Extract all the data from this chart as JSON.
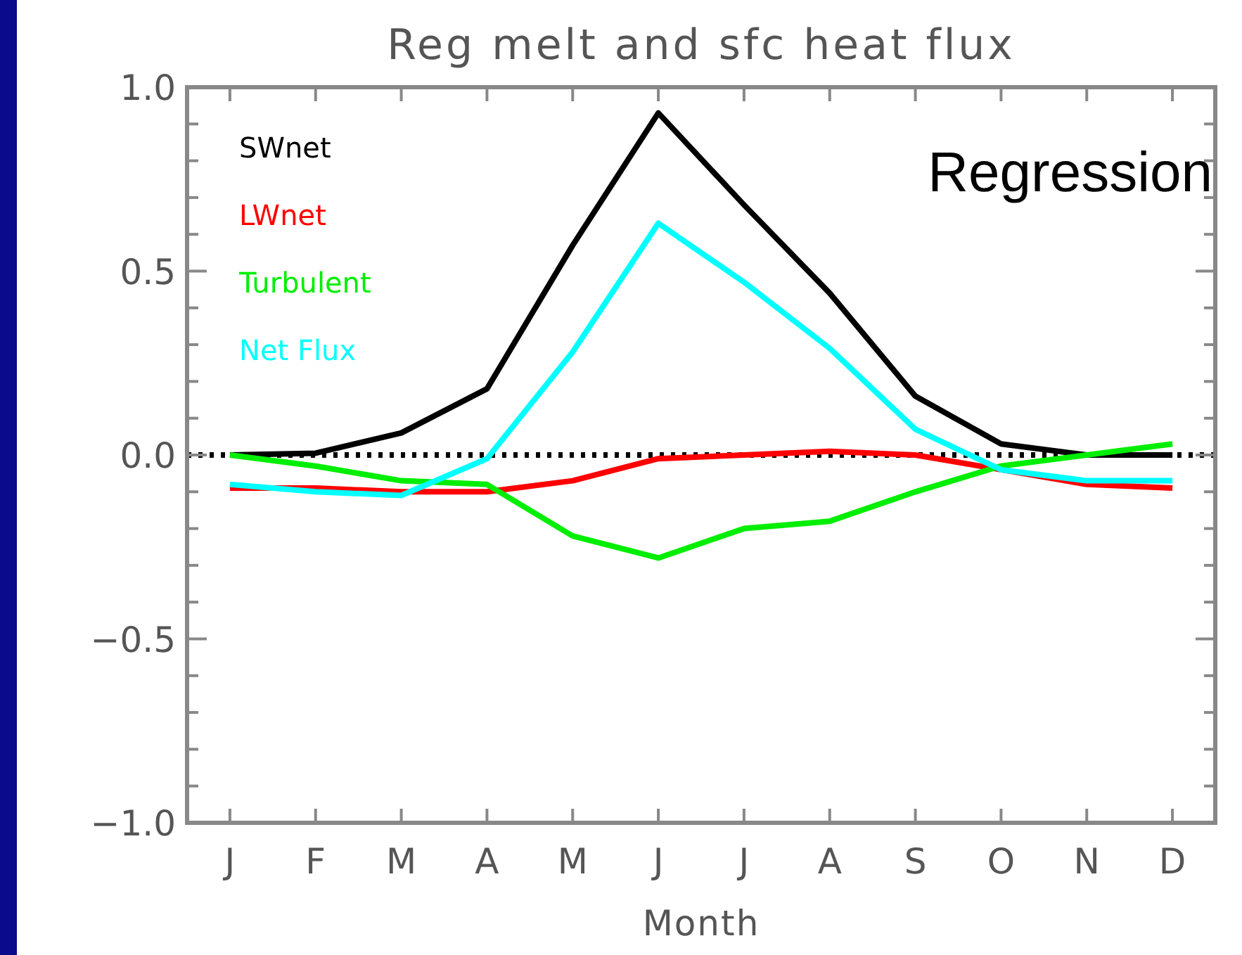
{
  "chart_data": {
    "type": "line",
    "title": "Reg melt and sfc heat flux",
    "xlabel": "Month",
    "categories": [
      "J",
      "F",
      "M",
      "A",
      "M",
      "J",
      "J",
      "A",
      "S",
      "O",
      "N",
      "D"
    ],
    "series": [
      {
        "name": "SWnet",
        "color": "#000000",
        "values": [
          0,
          0.005,
          0.06,
          0.18,
          0.57,
          0.93,
          0.68,
          0.44,
          0.16,
          0.03,
          0,
          0
        ]
      },
      {
        "name": "LWnet",
        "color": "#ff0000",
        "values": [
          -0.09,
          -0.09,
          -0.1,
          -0.1,
          -0.07,
          -0.01,
          0,
          0.01,
          0,
          -0.04,
          -0.08,
          -0.09
        ]
      },
      {
        "name": "Turbulent",
        "color": "#00ee00",
        "values": [
          0,
          -0.03,
          -0.07,
          -0.08,
          -0.22,
          -0.28,
          -0.2,
          -0.18,
          -0.1,
          -0.03,
          0,
          0.03
        ]
      },
      {
        "name": "Net Flux",
        "color": "#00ffff",
        "values": [
          -0.08,
          -0.1,
          -0.11,
          -0.01,
          0.28,
          0.63,
          0.47,
          0.29,
          0.07,
          -0.04,
          -0.07,
          -0.07
        ]
      }
    ],
    "ylim": [
      -1.0,
      1.0
    ],
    "yticks": [
      {
        "value": -1.0,
        "label": "−1.0"
      },
      {
        "value": -0.9,
        "label": null
      },
      {
        "value": -0.8,
        "label": null
      },
      {
        "value": -0.7,
        "label": null
      },
      {
        "value": -0.6,
        "label": null
      },
      {
        "value": -0.5,
        "label": "−0.5"
      },
      {
        "value": -0.4,
        "label": null
      },
      {
        "value": -0.3,
        "label": null
      },
      {
        "value": -0.2,
        "label": null
      },
      {
        "value": -0.1,
        "label": null
      },
      {
        "value": 0,
        "label": "0.0"
      },
      {
        "value": 0.1,
        "label": null
      },
      {
        "value": 0.2,
        "label": null
      },
      {
        "value": 0.3,
        "label": null
      },
      {
        "value": 0.4,
        "label": null
      },
      {
        "value": 0.5,
        "label": "0.5"
      },
      {
        "value": 0.6,
        "label": null
      },
      {
        "value": 0.7,
        "label": null
      },
      {
        "value": 0.8,
        "label": null
      },
      {
        "value": 0.9,
        "label": null
      },
      {
        "value": 1.0,
        "label": "1.0"
      }
    ],
    "ref_lines": [
      {
        "axis": "y",
        "value": 0,
        "color": "#000000",
        "line_style": "dotted"
      }
    ],
    "annotations": [
      "Regression"
    ],
    "legend": "top left",
    "grid": false,
    "marker": "none",
    "line_style": "solid"
  }
}
